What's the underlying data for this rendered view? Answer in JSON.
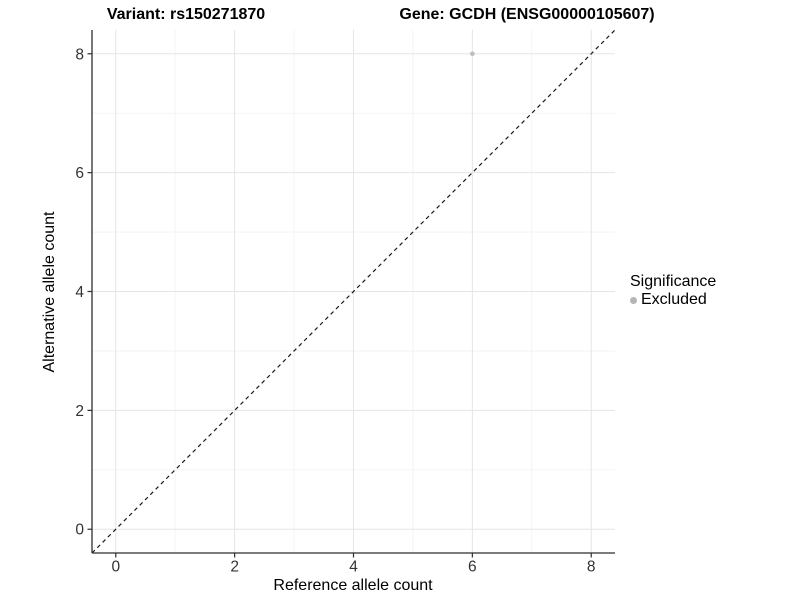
{
  "header": {
    "title_variant": "Variant: rs150271870",
    "title_gene": "Gene: GCDH (ENSG00000105607)"
  },
  "axes": {
    "x_label": "Reference allele count",
    "y_label": "Alternative allele count"
  },
  "legend": {
    "title": "Significance",
    "items": [
      {
        "label": "Excluded",
        "color": "#b5b5b5",
        "marker": "circle"
      }
    ]
  },
  "chart_data": {
    "type": "scatter",
    "title": "Variant: rs150271870    Gene: GCDH (ENSG00000105607)",
    "xlabel": "Reference allele count",
    "ylabel": "Alternative allele count",
    "xlim": [
      -0.4,
      8.4
    ],
    "ylim": [
      -0.4,
      8.4
    ],
    "x_ticks": [
      0,
      2,
      4,
      6,
      8
    ],
    "y_ticks": [
      0,
      2,
      4,
      6,
      8
    ],
    "x_minor_ticks": [
      1,
      3,
      5,
      7
    ],
    "y_minor_ticks": [
      1,
      3,
      5,
      7
    ],
    "grid": true,
    "legend_position": "right",
    "series": [
      {
        "name": "Excluded",
        "color": "#bdbdbd",
        "points": [
          {
            "x": 6,
            "y": 8
          }
        ]
      }
    ],
    "reference_line": {
      "equation": "y = x",
      "style": "dashed",
      "color": "#1a1a1a"
    },
    "style": {
      "background": "#ffffff",
      "major_grid_color": "#e5e5e5",
      "minor_grid_color": "#f2f2f2",
      "axis_line_color": "#2e2e2e",
      "tick_color": "#2e2e2e",
      "tick_label_color": "#333333",
      "point_radius": 2.3,
      "tick_label_font_size": 15.5
    }
  }
}
